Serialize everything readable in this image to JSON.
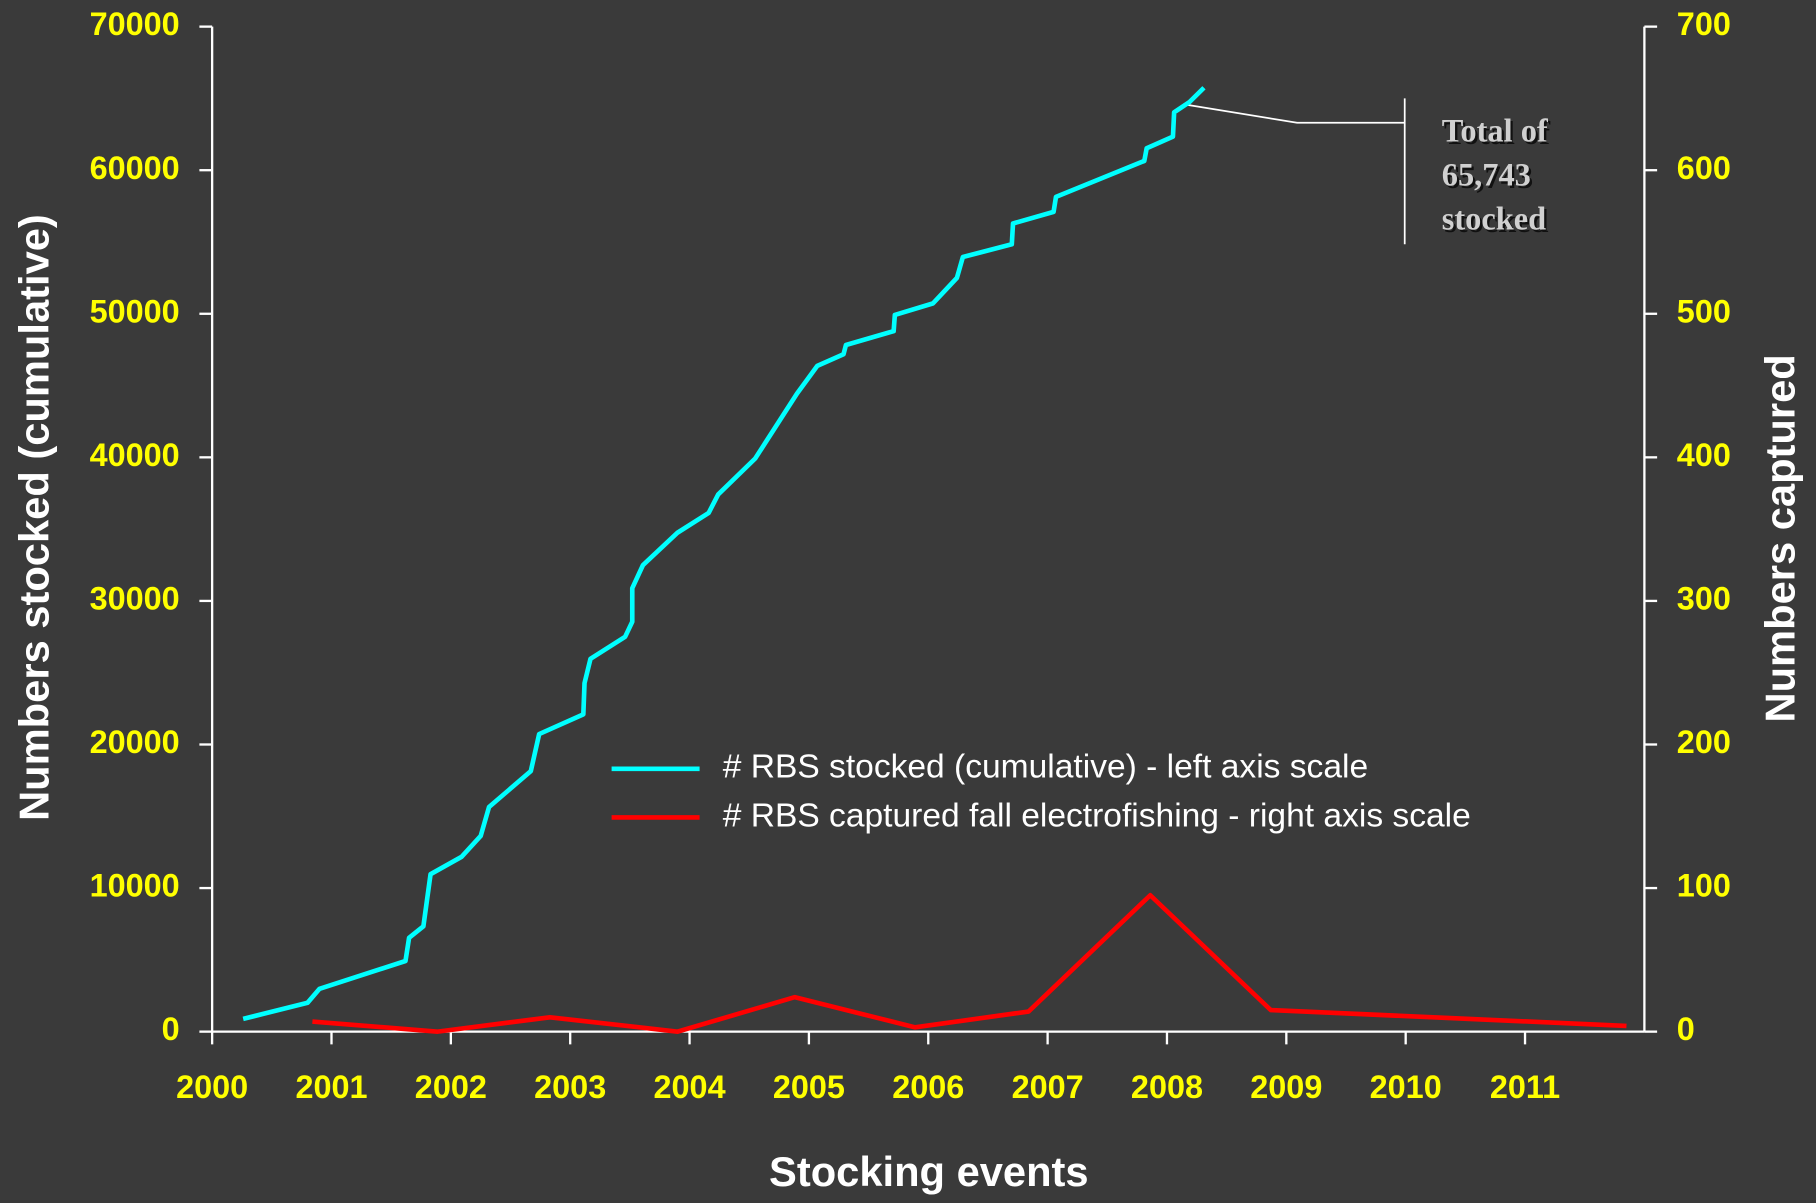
{
  "chart_data": {
    "type": "line",
    "xlabel": "Stocking events",
    "ylabel": "Numbers stocked (cumulative)",
    "y2label": "Numbers captured",
    "xlim": [
      2000,
      2012
    ],
    "xticks": [
      2000,
      2001,
      2002,
      2003,
      2004,
      2005,
      2006,
      2007,
      2008,
      2009,
      2010,
      2011
    ],
    "ylim": [
      0,
      70000
    ],
    "yticks": [
      0,
      10000,
      20000,
      30000,
      40000,
      50000,
      60000,
      70000
    ],
    "y2lim": [
      0,
      700
    ],
    "y2ticks": [
      0,
      100,
      200,
      300,
      400,
      500,
      600,
      700
    ],
    "legend": "center",
    "series": [
      {
        "name": "# RBS stocked (cumulative) - left axis scale",
        "color": "#00ffff",
        "axis": "y",
        "x": [
          2000.26,
          2000.8,
          2000.9,
          2001.62,
          2001.65,
          2001.77,
          2001.83,
          2002.09,
          2002.25,
          2002.32,
          2002.67,
          2002.74,
          2003.11,
          2003.12,
          2003.17,
          2003.46,
          2003.52,
          2003.52,
          2003.61,
          2003.9,
          2004.16,
          2004.24,
          2004.55,
          2004.9,
          2005.07,
          2005.29,
          2005.31,
          2005.71,
          2005.72,
          2006.04,
          2006.24,
          2006.29,
          2006.7,
          2006.71,
          2007.05,
          2007.07,
          2007.81,
          2007.83,
          2008.05,
          2008.06,
          2008.19,
          2008.31
        ],
        "values": [
          887,
          2016,
          2984,
          4919,
          6532,
          7339,
          10968,
          12177,
          13629,
          15645,
          18145,
          20726,
          22097,
          24274,
          25968,
          27500,
          28548,
          30887,
          32500,
          34758,
          36129,
          37419,
          39919,
          44435,
          46371,
          47177,
          47823,
          48790,
          49919,
          50726,
          52500,
          53952,
          54839,
          56290,
          57097,
          58145,
          60645,
          61532,
          62339,
          64032,
          64758,
          65743
        ]
      },
      {
        "name": "# RBS captured fall electrofishing - right axis scale",
        "color": "#ff0000",
        "axis": "y2",
        "x": [
          2000.84,
          2001.89,
          2002.83,
          2003.9,
          2004.88,
          2005.89,
          2006.84,
          2007.86,
          2008.87,
          2011.85
        ],
        "values": [
          7,
          0,
          10,
          0,
          24,
          3,
          14,
          95,
          15,
          4
        ]
      }
    ],
    "annotation": {
      "lines": [
        "Total of",
        "65,743",
        "stocked"
      ]
    }
  }
}
